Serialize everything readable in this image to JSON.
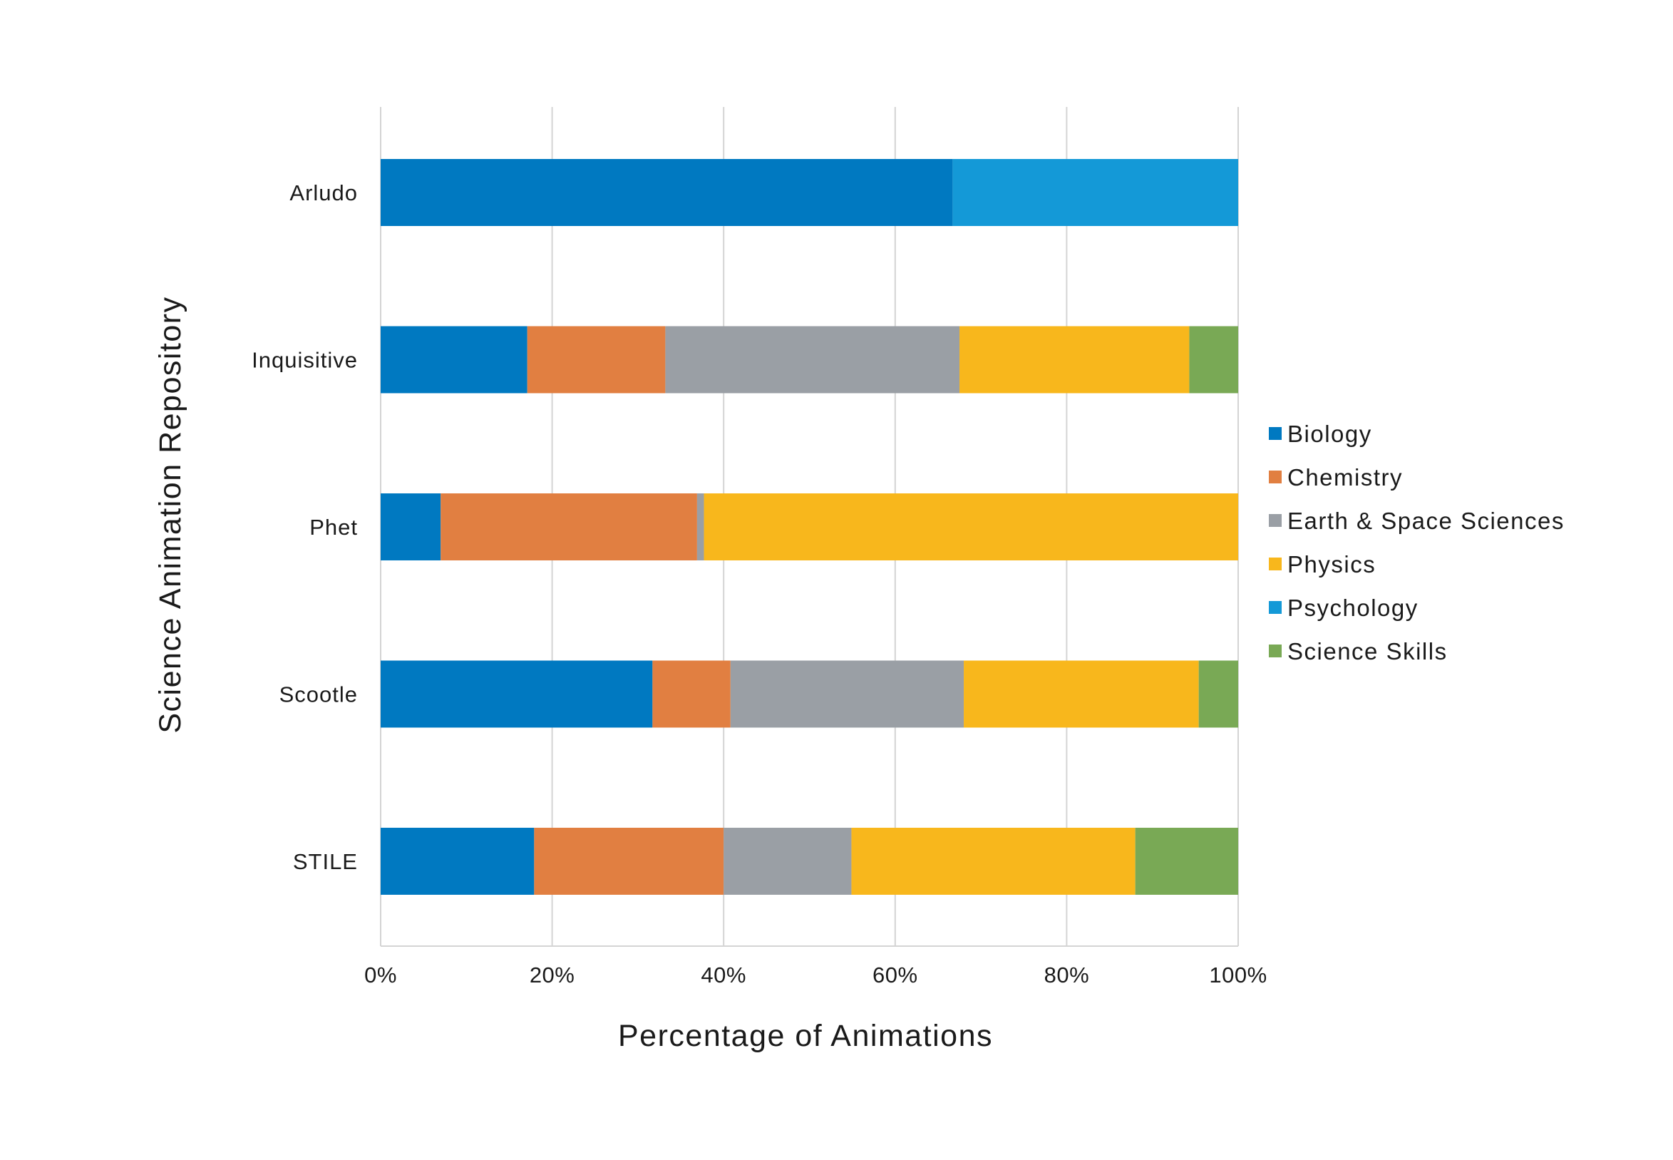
{
  "chart_data": {
    "type": "bar",
    "orientation": "horizontal",
    "stacked": "percent",
    "title": "",
    "xlabel": "Percentage of Animations",
    "ylabel": "Science Animation Repository",
    "xlim": [
      0,
      100
    ],
    "x_ticks": [
      "0%",
      "20%",
      "40%",
      "60%",
      "80%",
      "100%"
    ],
    "grid": true,
    "legend_position": "right",
    "categories": [
      "Arludo",
      "Inquisitive",
      "Phet",
      "Scootle",
      "STILE"
    ],
    "series": [
      {
        "name": "Biology",
        "color": "#0079C1",
        "values": [
          66.7,
          17.1,
          7.0,
          31.7,
          17.9
        ]
      },
      {
        "name": "Chemistry",
        "color": "#E17F41",
        "values": [
          0,
          16.1,
          29.9,
          9.1,
          22.1
        ]
      },
      {
        "name": "Earth & Space Sciences",
        "color": "#9A9FA5",
        "values": [
          0,
          34.3,
          0.8,
          27.2,
          14.9
        ]
      },
      {
        "name": "Physics",
        "color": "#F8B71C",
        "values": [
          0,
          26.8,
          62.3,
          27.4,
          33.1
        ]
      },
      {
        "name": "Psychology",
        "color": "#1499D7",
        "values": [
          33.3,
          0,
          0,
          0,
          0
        ]
      },
      {
        "name": "Science Skills",
        "color": "#79A955",
        "values": [
          0,
          5.7,
          0,
          4.6,
          12.0
        ]
      }
    ],
    "gridline_color": "#D4D4D4"
  }
}
